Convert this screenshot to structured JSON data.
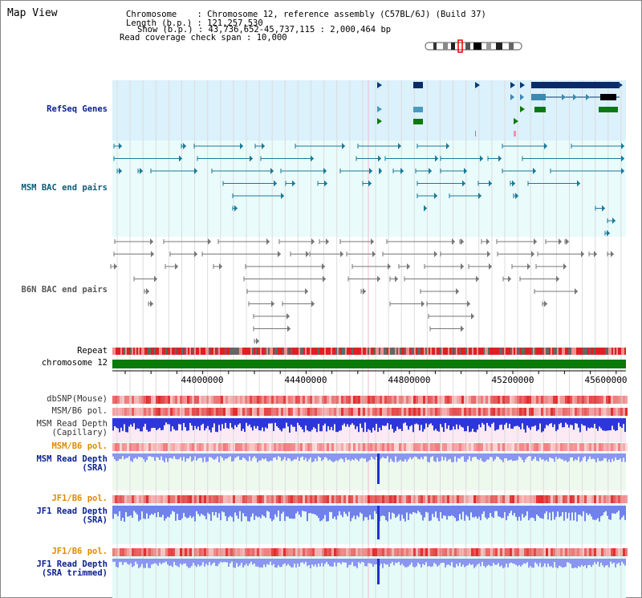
{
  "view": {
    "title": "Map View"
  },
  "info": {
    "chromosome_key": "Chromosome    ",
    "chromosome_val": ": Chromosome 12, reference assembly (C57BL/6J) (Build 37)",
    "length_key": "Length (b.p.)",
    "length_val": ": 121,257,530",
    "show_key": "Show (b.p.)",
    "show_val": ": 43,736,652-45,737,115 : 2,000,464 bp",
    "coverage_key": "Read coverage check span",
    "coverage_val": ": 10,000"
  },
  "tracks": {
    "refseq": "RefSeq Genes",
    "msm_bac": "MSM BAC end pairs",
    "b6n_bac": "B6N BAC end pairs",
    "repeat": "Repeat",
    "chromosome": "chromosome 12",
    "dbsnp": "dbSNP(Mouse)",
    "msm_b6_pol_1": "MSM/B6 pol.",
    "msm_depth_cap_1": "MSM Read Depth",
    "msm_depth_cap_2": "(Capillary)",
    "msm_b6_pol_2": "MSM/B6 pol.",
    "msm_depth_sra_1": "MSM Read Depth",
    "msm_depth_sra_2": "(SRA)",
    "jf1_b6_pol_1": "JF1/B6 pol.",
    "jf1_depth_sra_1": "JF1 Read Depth",
    "jf1_depth_sra_2": "(SRA)",
    "jf1_b6_pol_2": "JF1/B6 pol.",
    "jf1_depth_trim_1": "JF1 Read Depth",
    "jf1_depth_trim_2": "(SRA trimmed)"
  },
  "axis": {
    "ticks": [
      "44000000",
      "44400000",
      "44800000",
      "45200000",
      "45600000"
    ]
  },
  "colors": {
    "refseq_bg": "#dbf1fb",
    "msm_bac_bg": "#e9fbfb",
    "chromosome": "#0a7a0a",
    "depth_bar": "#3344ee"
  }
}
